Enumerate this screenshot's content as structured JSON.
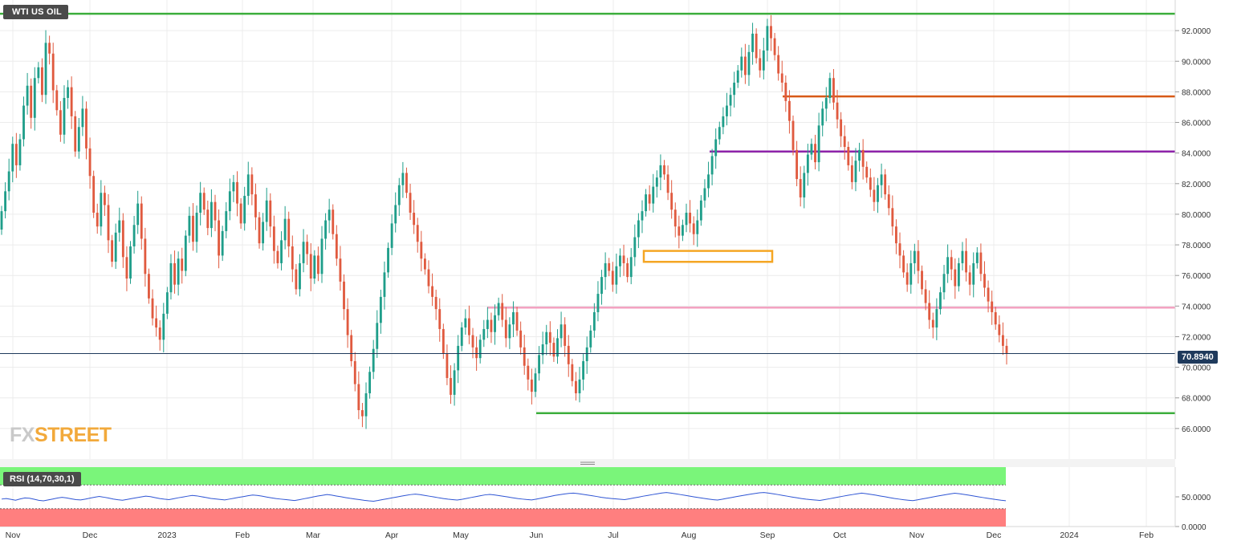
{
  "chart_data": [
    {
      "type": "candlestick",
      "title": "WTI US OIL",
      "ylim": [
        64.0,
        94.0
      ],
      "y_ticks": [
        "92.0000",
        "90.0000",
        "88.0000",
        "86.0000",
        "84.0000",
        "82.0000",
        "80.0000",
        "78.0000",
        "76.0000",
        "74.0000",
        "72.0000",
        "70.0000",
        "68.0000",
        "66.0000"
      ],
      "x_ticks": [
        "Nov",
        "Dec",
        "2023",
        "Feb",
        "Mar",
        "Apr",
        "May",
        "Jun",
        "Jul",
        "Aug",
        "Sep",
        "Oct",
        "Nov",
        "Dec",
        "2024",
        "Feb"
      ],
      "last_price": "70.8940",
      "grid": true,
      "closes": [
        80.2,
        81.5,
        82.8,
        84.6,
        83.2,
        84.9,
        87.1,
        88.4,
        86.3,
        88.9,
        89.6,
        87.8,
        91.2,
        90.5,
        88.1,
        86.8,
        85.2,
        87.6,
        88.3,
        86.4,
        84.1,
        85.7,
        86.9,
        84.3,
        82.5,
        80.1,
        79.2,
        81.4,
        80.6,
        78.3,
        76.9,
        78.8,
        79.6,
        77.2,
        75.8,
        77.9,
        79.3,
        80.7,
        78.4,
        76.1,
        74.5,
        73.2,
        72.6,
        71.8,
        73.5,
        74.9,
        76.8,
        75.4,
        77.1,
        76.3,
        78.6,
        79.9,
        78.2,
        80.1,
        81.4,
        80.3,
        79.1,
        80.8,
        79.6,
        77.3,
        78.9,
        80.2,
        81.5,
        82.1,
        80.7,
        79.4,
        81.2,
        82.6,
        81.3,
        79.8,
        78.1,
        79.5,
        80.9,
        79.2,
        77.6,
        76.8,
        78.3,
        79.7,
        77.9,
        76.4,
        75.1,
        76.8,
        78.2,
        77.4,
        75.8,
        77.3,
        76.1,
        78.4,
        79.6,
        80.3,
        78.7,
        77.1,
        75.6,
        73.8,
        72.1,
        70.4,
        68.9,
        67.2,
        66.8,
        68.3,
        69.7,
        71.2,
        72.9,
        74.6,
        76.2,
        77.8,
        79.4,
        80.6,
        81.9,
        82.7,
        81.4,
        80.1,
        79.3,
        78.2,
        77.1,
        76.4,
        75.3,
        74.6,
        73.8,
        72.5,
        70.9,
        69.3,
        68.2,
        69.8,
        71.4,
        72.6,
        73.2,
        72.1,
        71.3,
        70.6,
        71.8,
        72.5,
        73.1,
        72.3,
        73.4,
        74.2,
        73.1,
        71.9,
        72.8,
        73.6,
        72.4,
        71.3,
        70.1,
        69.2,
        68.4,
        69.6,
        70.8,
        71.5,
        72.3,
        71.6,
        70.7,
        71.9,
        72.8,
        71.4,
        70.2,
        69.1,
        68.3,
        69.2,
        70.4,
        71.3,
        72.4,
        73.6,
        74.8,
        75.9,
        76.8,
        76.3,
        75.4,
        76.6,
        77.3,
        76.8,
        75.9,
        77.2,
        78.5,
        79.6,
        80.2,
        81.3,
        80.7,
        81.8,
        82.4,
        83.2,
        82.6,
        81.4,
        80.3,
        79.2,
        78.6,
        79.3,
        80.1,
        79.4,
        78.7,
        79.6,
        80.9,
        81.7,
        82.6,
        83.8,
        84.9,
        85.7,
        86.4,
        87.1,
        87.8,
        88.6,
        89.4,
        90.3,
        89.1,
        90.6,
        91.8,
        90.2,
        89.4,
        90.7,
        92.3,
        91.5,
        90.4,
        89.2,
        88.6,
        87.4,
        86.1,
        84.2,
        82.3,
        81.1,
        82.7,
        83.9,
        84.6,
        83.4,
        85.8,
        86.9,
        87.6,
        88.9,
        87.3,
        86.2,
        85.1,
        84.4,
        83.2,
        82.1,
        83.5,
        84.2,
        83.1,
        82.4,
        81.6,
        80.8,
        81.9,
        82.6,
        81.3,
        80.4,
        79.2,
        78.1,
        77.3,
        76.2,
        75.4,
        76.8,
        77.6,
        76.3,
        75.1,
        74.2,
        73.1,
        72.6,
        73.8,
        74.9,
        76.1,
        77.2,
        76.4,
        75.3,
        76.8,
        77.6,
        76.2,
        75.4,
        76.8,
        77.5,
        76.1,
        75.2,
        74.3,
        73.6,
        72.8,
        72.1,
        71.4,
        70.89
      ],
      "levels": [
        {
          "value": 93.1,
          "color": "#3cae3c"
        },
        {
          "value": 87.7,
          "color": "#d85a16"
        },
        {
          "value": 84.1,
          "color": "#8e24aa"
        },
        {
          "value": 73.9,
          "color": "#f3a2c1"
        },
        {
          "value": 67.0,
          "color": "#3cae3c"
        }
      ],
      "zone": {
        "low": 77.1,
        "high": 77.5,
        "color": "#f5a623"
      }
    },
    {
      "type": "line",
      "title": "RSI (14,70,30,1)",
      "ylim": [
        0,
        100
      ],
      "y_ticks": [
        "50.0000",
        "0.0000"
      ],
      "overbought": 70,
      "oversold": 30,
      "values": [
        46.2,
        47.1,
        45.8,
        44.3,
        46.5,
        48.2,
        47.6,
        45.9,
        44.1,
        43.2,
        44.8,
        46.3,
        47.9,
        49.2,
        48.1,
        46.6,
        45.2,
        44.7,
        46.1,
        47.8,
        49.3,
        50.6,
        49.4,
        47.9,
        46.3,
        45.1,
        44.2,
        45.6,
        47.1,
        48.5,
        49.8,
        51.2,
        50.3,
        48.7,
        47.2,
        46.1,
        45.3,
        46.8,
        48.4,
        49.7,
        51.1,
        52.4,
        51.6,
        50.2,
        48.8,
        47.3,
        46.4,
        45.6,
        44.8,
        46.2,
        47.7,
        49.1,
        50.4,
        51.8,
        53.1,
        52.3,
        51.2,
        49.6,
        48.3,
        47.1,
        46.2,
        45.4,
        44.6,
        43.8,
        45.1,
        46.7,
        48.2,
        49.8,
        51.3,
        52.6,
        53.9,
        52.8,
        51.4,
        50.1,
        48.7,
        47.4,
        46.3,
        45.2,
        44.1,
        43.2,
        42.6,
        43.9,
        45.4,
        46.8,
        48.3,
        49.7,
        51.2,
        52.6,
        53.8,
        54.6,
        53.7,
        52.4,
        51.1,
        49.8,
        48.4,
        47.2,
        46.1,
        45.3,
        44.6,
        45.8,
        47.3,
        48.9,
        50.4,
        51.9,
        53.3,
        54.1,
        53.2,
        52.1,
        50.8,
        49.6,
        48.3,
        47.1,
        46.2,
        45.4,
        44.8,
        46.1,
        47.6,
        49.2,
        50.7,
        52.3,
        53.6,
        54.8,
        55.7,
        56.3,
        55.4,
        54.2,
        53.1,
        51.9,
        50.6,
        49.2,
        48.1,
        47.3,
        46.6,
        45.9,
        45.2,
        46.6,
        48.1,
        49.5,
        51.1,
        52.4,
        53.8,
        55.1,
        56.4,
        57.2,
        56.3,
        55.1,
        53.8,
        52.6,
        51.2,
        49.9,
        48.7,
        47.4,
        46.3,
        45.2,
        44.6,
        45.9,
        47.4,
        48.8,
        50.3,
        51.7,
        53.1,
        54.4,
        55.6,
        56.8,
        57.3,
        56.2,
        55.1,
        53.8,
        52.4,
        51.1,
        49.7,
        48.4,
        47.2,
        46.1,
        45.3,
        44.6,
        43.9,
        45.2,
        46.7,
        48.1,
        49.6,
        51.1,
        52.5,
        53.8,
        55.1,
        56.2,
        55.3,
        54.1,
        52.8,
        51.4,
        50.1,
        48.7,
        47.3,
        46.2,
        45.1,
        44.3,
        43.6,
        44.9,
        46.4,
        47.8,
        49.3,
        50.8,
        52.2,
        53.6,
        54.9,
        56.1,
        55.2,
        54.1,
        52.9,
        51.6,
        50.2,
        48.9,
        47.6,
        46.4,
        45.3,
        44.2,
        43.4
      ],
      "fill_overbought": "#7af57a",
      "fill_oversold": "#ff7f7f"
    }
  ],
  "title_badge": "WTI US OIL",
  "rsi_badge": "RSI (14,70,30,1)",
  "price_tag": "70.8940",
  "logo": {
    "fx": "FX",
    "street": "STREET"
  }
}
